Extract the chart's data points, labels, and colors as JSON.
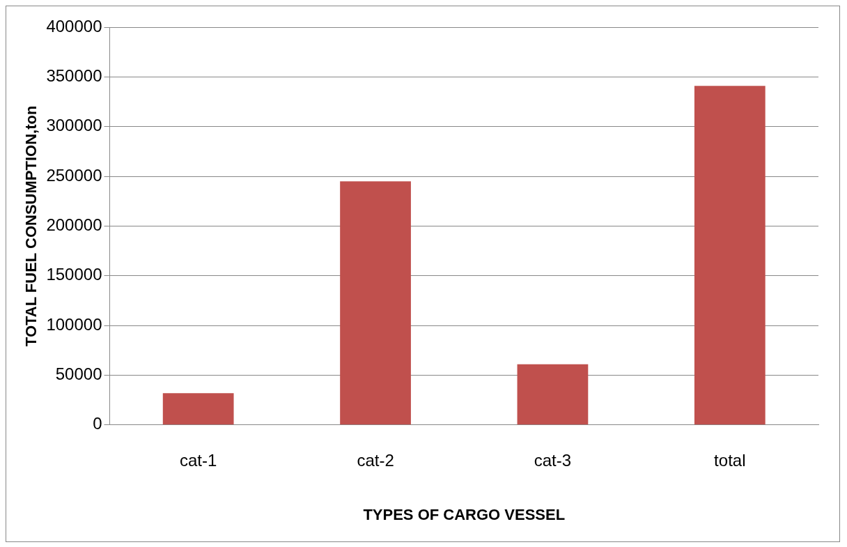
{
  "chart_data": {
    "type": "bar",
    "xlabel": "TYPES OF CARGO VESSEL",
    "ylabel": "TOTAL FUEL CONSUMPTION,ton",
    "categories": [
      "cat-1",
      "cat-2",
      "cat-3",
      "total"
    ],
    "values": [
      32000,
      245000,
      61000,
      341000
    ],
    "color": "#c0504d",
    "ylim": [
      0,
      400000
    ],
    "yticks": [
      0,
      50000,
      100000,
      150000,
      200000,
      250000,
      300000,
      350000,
      400000
    ],
    "grid": "y",
    "legend": false
  }
}
